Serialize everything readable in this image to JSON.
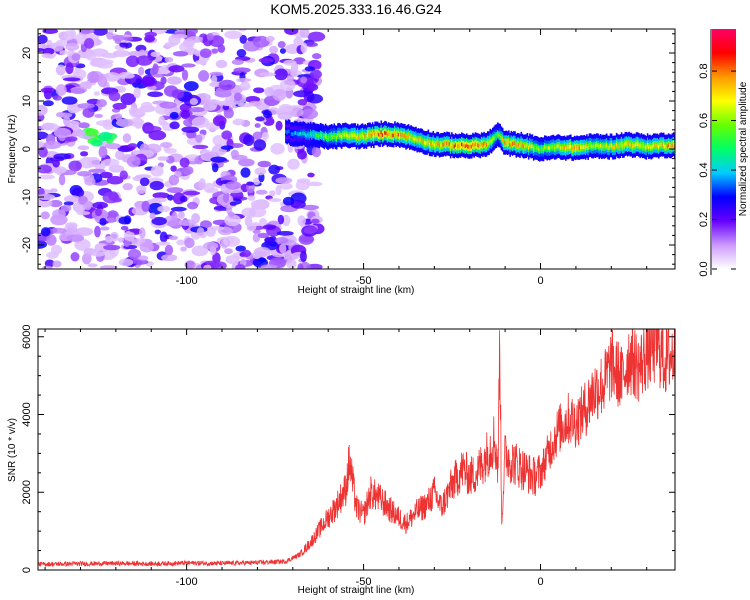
{
  "title": "KOM5.2025.333.16.46.G24",
  "chart_data": [
    {
      "type": "heatmap",
      "xlabel": "Height of straight line (km)",
      "ylabel": "Frequency (Hz)",
      "xlim": [
        -142,
        38
      ],
      "ylim": [
        -25,
        25
      ],
      "xticks": [
        -100,
        -50,
        0
      ],
      "yticks": [
        -20,
        -10,
        0,
        10,
        20
      ],
      "colorbar": {
        "label": "Normalized spectral amplitude",
        "ticks": [
          0.0,
          0.2,
          0.4,
          0.6,
          0.8
        ],
        "range": [
          0,
          0.97
        ],
        "colors": [
          "#ffffff",
          "#cc99ff",
          "#6600ff",
          "#0000ff",
          "#00ccff",
          "#00ff66",
          "#66ff00",
          "#ffff00",
          "#ff9900",
          "#ff0000",
          "#ff0066"
        ]
      },
      "ridge": {
        "description_values": "dominant frequency (Hz) vs height (km)",
        "x": [
          -72,
          -66,
          -60,
          -55,
          -50,
          -45,
          -40,
          -35,
          -30,
          -25,
          -20,
          -15,
          -12,
          -10,
          -5,
          0,
          5,
          10,
          15,
          20,
          25,
          30,
          35,
          38
        ],
        "y": [
          3.5,
          3.0,
          2.5,
          2.8,
          2.6,
          3.2,
          3.0,
          2.0,
          1.0,
          0.8,
          0.6,
          1.0,
          3.0,
          1.2,
          0.8,
          0.0,
          0.4,
          0.2,
          0.6,
          0.5,
          1.0,
          0.5,
          0.8,
          0.8
        ],
        "amplitude": [
          0.35,
          0.45,
          0.6,
          0.7,
          0.75,
          0.85,
          0.8,
          0.7,
          0.75,
          0.8,
          0.9,
          0.75,
          0.55,
          0.8,
          0.75,
          0.6,
          0.7,
          0.8,
          0.65,
          0.7,
          0.75,
          0.7,
          0.75,
          0.8
        ]
      },
      "noise_region_x": [
        -142,
        -63
      ]
    },
    {
      "type": "line",
      "xlabel": "Height of straight line (km)",
      "ylabel": "SNR (10 * v/v)",
      "xlim": [
        -142,
        38
      ],
      "ylim": [
        0,
        6200
      ],
      "xticks": [
        -100,
        -50,
        0
      ],
      "yticks": [
        0,
        2000,
        4000,
        6000
      ],
      "color": "#ee3333",
      "x": [
        -142,
        -130,
        -120,
        -110,
        -100,
        -90,
        -80,
        -72,
        -68,
        -65,
        -62,
        -58,
        -55,
        -54,
        -52,
        -50,
        -48,
        -45,
        -42,
        -38,
        -35,
        -32,
        -30,
        -28,
        -25,
        -22,
        -20,
        -18,
        -15,
        -13,
        -12,
        -11.5,
        -11,
        -10,
        -8,
        -5,
        -2,
        0,
        3,
        5,
        8,
        10,
        13,
        15,
        18,
        20,
        23,
        25,
        28,
        30,
        33,
        35,
        38
      ],
      "y": [
        150,
        160,
        170,
        160,
        180,
        170,
        190,
        220,
        400,
        700,
        1100,
        1600,
        2100,
        2800,
        1600,
        1400,
        2000,
        1800,
        1500,
        1200,
        1500,
        1700,
        2000,
        1600,
        2200,
        2600,
        2400,
        2500,
        3000,
        3400,
        2600,
        6200,
        1200,
        3000,
        2800,
        2600,
        2400,
        2500,
        3200,
        3600,
        3900,
        3800,
        4200,
        4600,
        4800,
        5300,
        4900,
        5500,
        5200,
        5600,
        5800,
        5400,
        5600
      ]
    }
  ]
}
